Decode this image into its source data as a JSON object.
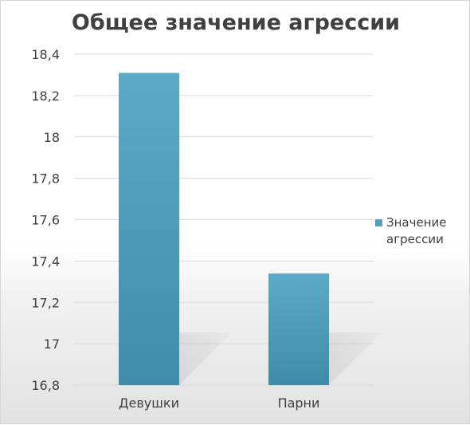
{
  "chart_data": {
    "type": "bar",
    "title": "Общее значение агрессии",
    "categories": [
      "Девушки",
      "Парни"
    ],
    "series": [
      {
        "name": "Значение агрессии",
        "values": [
          18.31,
          17.34
        ]
      }
    ],
    "ylim": [
      16.8,
      18.4
    ],
    "yticks": [
      "18,4",
      "18,2",
      "18",
      "17,8",
      "17,6",
      "17,4",
      "17,2",
      "17",
      "16,8"
    ],
    "xlabel": "",
    "ylabel": "",
    "grid": true,
    "legend_position": "right",
    "colors": {
      "bar": "#4fa0bd",
      "bar_dark": "#3b87a2",
      "grid": "#d9d9d9",
      "text": "#404040"
    }
  }
}
